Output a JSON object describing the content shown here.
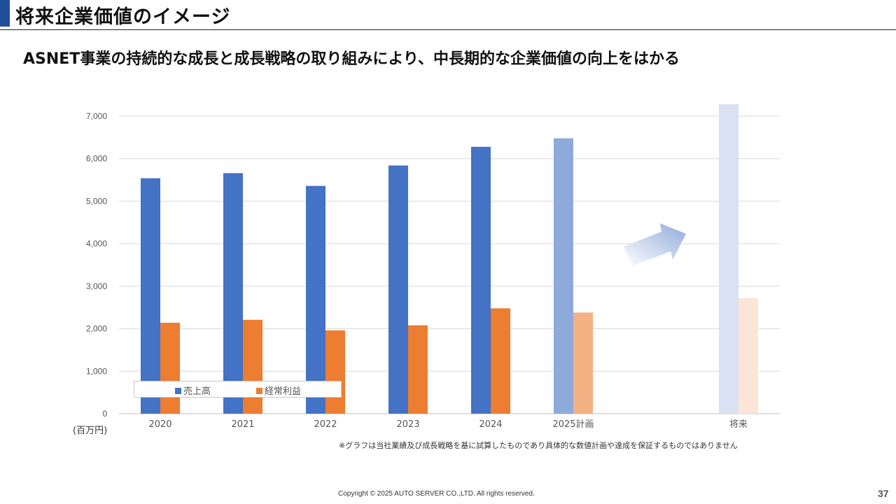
{
  "header": {
    "title": "将来企業価値のイメージ"
  },
  "subtitle": "ASNET事業の持続的な成長と成長戦略の取り組みにより、中長期的な企業価値の向上をはかる",
  "chart_data": {
    "type": "bar",
    "categories": [
      "2020",
      "2021",
      "2022",
      "2023",
      "2024",
      "2025計画",
      "将来"
    ],
    "series": [
      {
        "name": "売上高",
        "values": [
          5540,
          5660,
          5360,
          5840,
          6280,
          6480,
          7280
        ],
        "color": "#4472c4",
        "plan_color": "#8eaadb",
        "future_color": "#d9e1f2"
      },
      {
        "name": "経常利益",
        "values": [
          2140,
          2210,
          1960,
          2080,
          2480,
          2380,
          2720
        ],
        "color": "#ed7d31",
        "plan_color": "#f4b183",
        "future_color": "#fbe5d6"
      }
    ],
    "ylim": [
      0,
      7000
    ],
    "yticks": [
      "0",
      "1,000",
      "2,000",
      "3,000",
      "4,000",
      "5,000",
      "6,000",
      "7,000"
    ],
    "grid": true,
    "legend_position": "bottom-left",
    "unit_label": "(百万円)",
    "footnote": "※グラフは当社業績及び成長戦略を基に試算したものであり具体的な数値計画や達成を保証するものではありません"
  },
  "footer": {
    "copyright": "Copyright © 2025 AUTO SERVER CO.,LTD.  All rights reserved.",
    "page_number": "37"
  },
  "colors": {
    "accent": "#1f4e9a",
    "arrow": "#8eaadb"
  }
}
